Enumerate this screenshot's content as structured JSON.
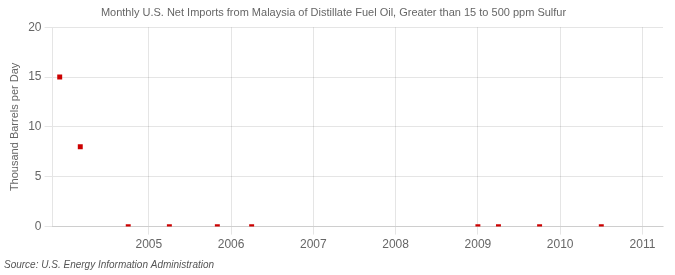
{
  "chart_data": {
    "type": "scatter",
    "title": "Monthly U.S. Net Imports from Malaysia of Distillate Fuel Oil, Greater than 15 to 500 ppm Sulfur",
    "y_label": "Thousand Barrels per Day",
    "annotation": "Source: U.S. Energy Information Administration",
    "x": [
      2003.917,
      2004.167,
      2004.75,
      2005.25,
      2005.833,
      2006.25,
      2009.0,
      2009.25,
      2009.75,
      2010.5
    ],
    "values": [
      15.0,
      8.0,
      0.0,
      0.0,
      0.0,
      0.0,
      0.0,
      0.0,
      0.0,
      0.0
    ],
    "color": "#cc0000",
    "marker": "square",
    "xlim": [
      2003.83,
      2011.25
    ],
    "xticks": [
      2005,
      2006,
      2007,
      2008,
      2009,
      2010,
      2011
    ],
    "ylim": [
      0,
      20
    ],
    "yticks": [
      0,
      5,
      10,
      15,
      20
    ],
    "grid": true
  }
}
